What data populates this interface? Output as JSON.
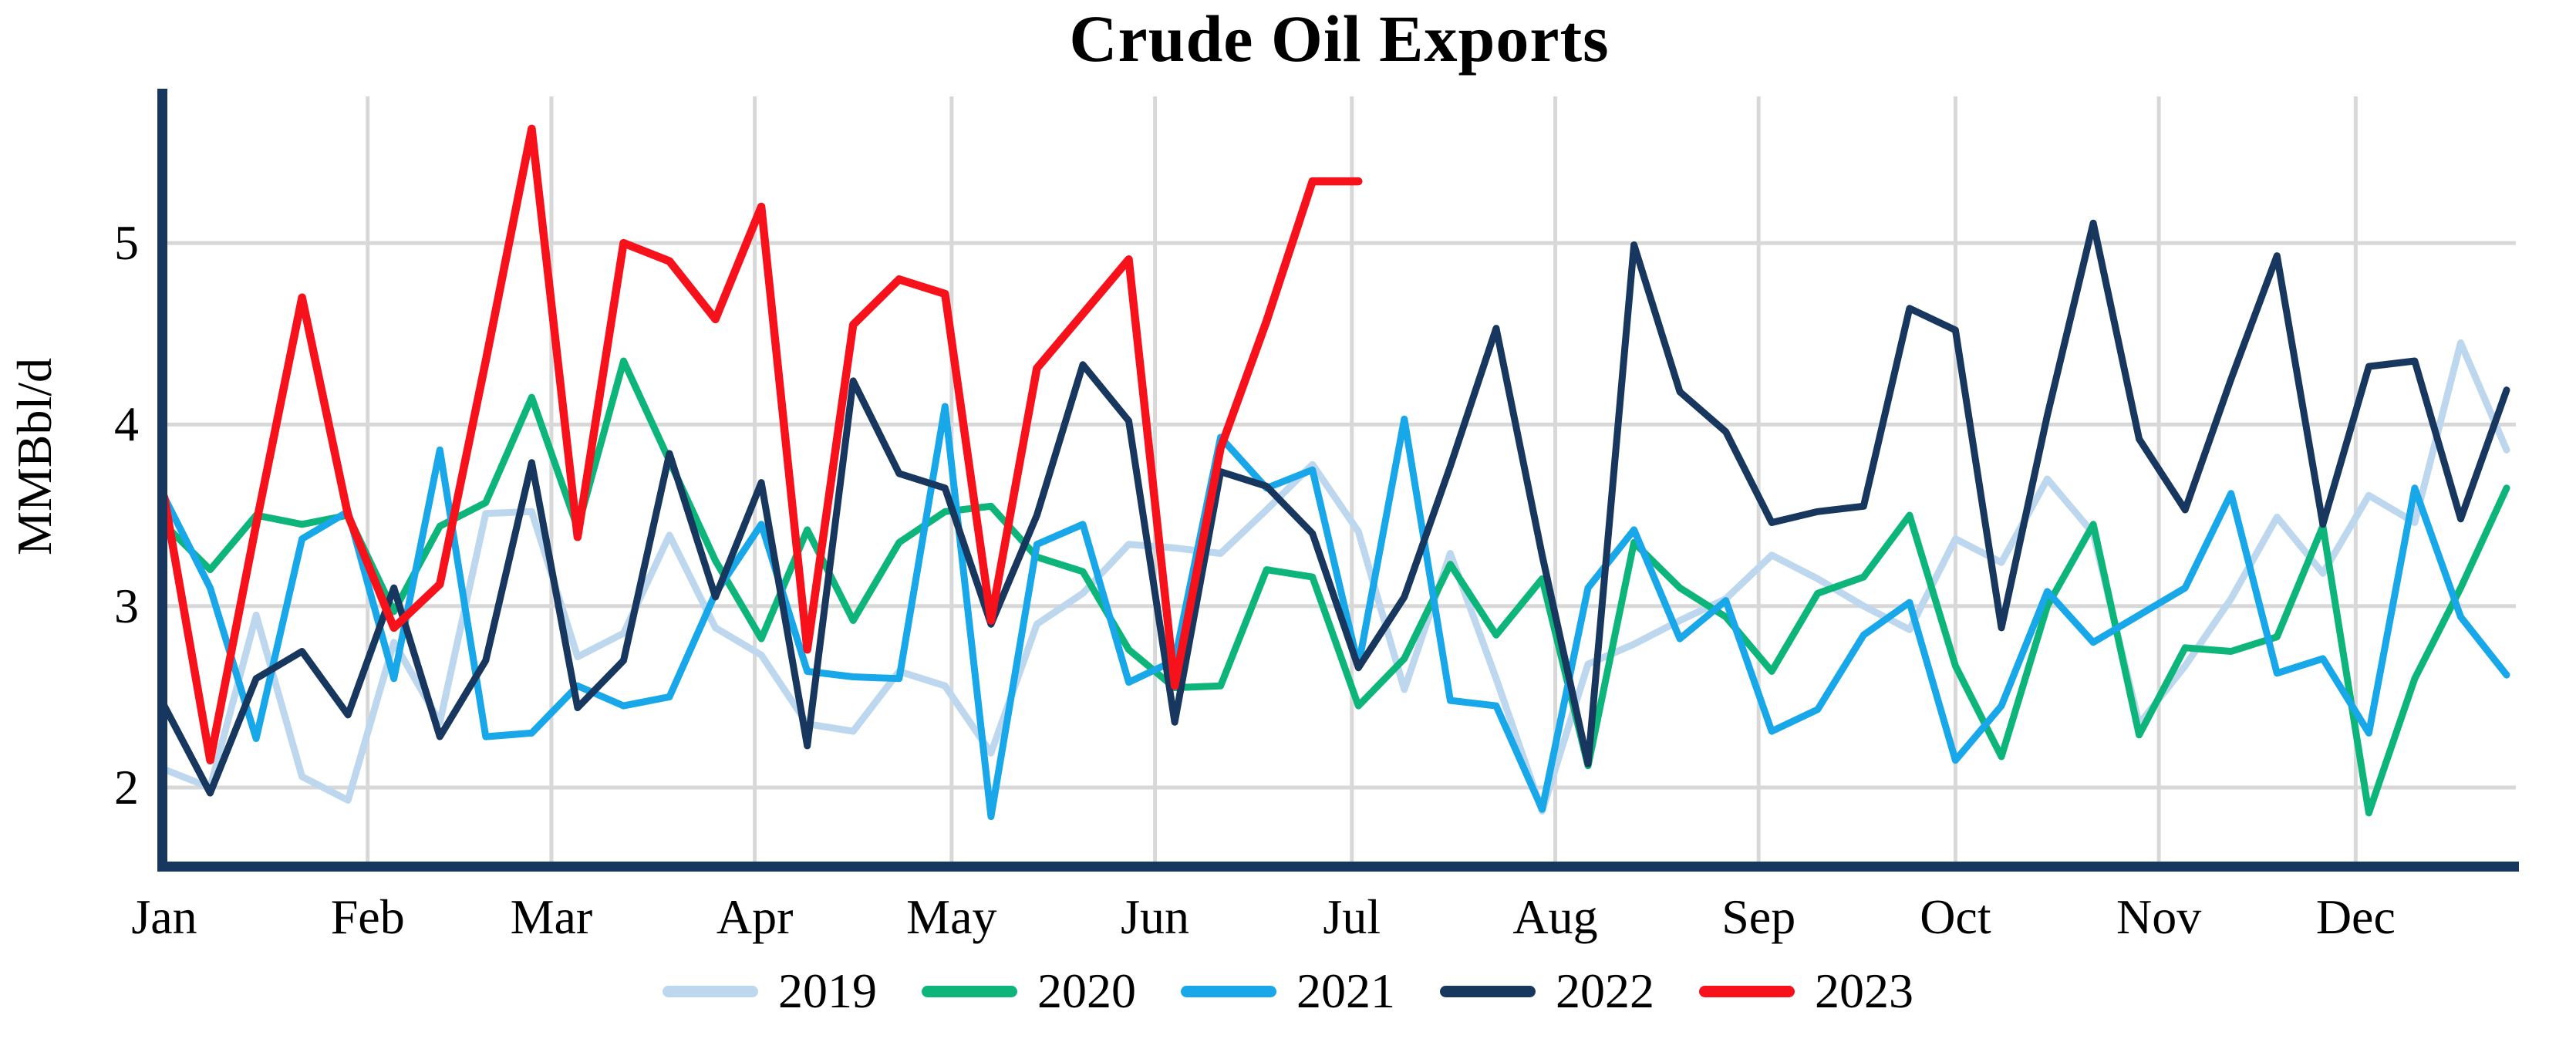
{
  "title": "Crude Oil Exports",
  "y_axis": {
    "label": "MMBbl/d",
    "ticks": [
      2,
      3,
      4,
      5
    ]
  },
  "x_axis": {
    "months": [
      "Jan",
      "Feb",
      "Mar",
      "Apr",
      "May",
      "Jun",
      "Jul",
      "Aug",
      "Sep",
      "Oct",
      "Nov",
      "Dec"
    ],
    "month_start_day_of_year": [
      0,
      31,
      59,
      90,
      120,
      151,
      181,
      212,
      243,
      273,
      304,
      334
    ]
  },
  "legend": [
    "2019",
    "2020",
    "2021",
    "2022",
    "2023"
  ],
  "colors": {
    "2019": "#BDD7EE",
    "2020": "#0EB57A",
    "2021": "#18A7E8",
    "2022": "#17375E",
    "2023": "#F6111B",
    "axis": "#17375E",
    "gridline": "#D8D8D8",
    "text": "#000000"
  },
  "chart_data": {
    "type": "line",
    "title": "Crude Oil Exports",
    "xlabel": "",
    "ylabel": "MMBbl/d",
    "x_unit": "week_of_year",
    "points_per_year": 52,
    "ylim": [
      1.57,
      5.82
    ],
    "yticks": [
      2,
      3,
      4,
      5
    ],
    "grid": true,
    "legend_position": "bottom",
    "series": [
      {
        "name": "2019",
        "values": [
          2.1,
          2.0,
          2.95,
          2.06,
          1.93,
          2.8,
          2.36,
          3.51,
          3.52,
          2.72,
          2.85,
          3.39,
          2.88,
          2.73,
          2.35,
          2.31,
          2.64,
          2.56,
          2.19,
          2.9,
          3.07,
          3.34,
          3.32,
          3.29,
          3.53,
          3.78,
          3.41,
          2.54,
          3.29,
          2.6,
          1.87,
          2.68,
          2.79,
          2.92,
          3.04,
          3.28,
          3.15,
          3.0,
          2.87,
          3.37,
          3.24,
          3.7,
          3.4,
          2.35,
          2.67,
          3.04,
          3.49,
          3.18,
          3.61,
          3.46,
          4.45,
          3.86
        ]
      },
      {
        "name": "2020",
        "values": [
          3.45,
          3.2,
          3.5,
          3.45,
          3.5,
          2.97,
          3.44,
          3.57,
          4.15,
          3.43,
          4.35,
          3.8,
          3.25,
          2.82,
          3.42,
          2.92,
          3.35,
          3.52,
          3.55,
          3.27,
          3.19,
          2.76,
          2.55,
          2.56,
          3.2,
          3.16,
          2.45,
          2.71,
          3.23,
          2.84,
          3.15,
          2.12,
          3.35,
          3.1,
          2.94,
          2.64,
          3.07,
          3.16,
          3.5,
          2.67,
          2.17,
          3.0,
          3.45,
          2.29,
          2.77,
          2.75,
          2.83,
          3.44,
          1.86,
          2.6,
          3.1,
          3.65
        ]
      },
      {
        "name": "2021",
        "values": [
          3.6,
          3.1,
          2.27,
          3.37,
          3.52,
          2.6,
          3.86,
          2.28,
          2.3,
          2.56,
          2.45,
          2.5,
          3.07,
          3.45,
          2.64,
          2.61,
          2.6,
          4.1,
          1.84,
          3.34,
          3.45,
          2.58,
          2.7,
          3.93,
          3.65,
          3.75,
          2.67,
          4.03,
          2.48,
          2.45,
          1.88,
          3.1,
          3.42,
          2.82,
          3.03,
          2.31,
          2.43,
          2.84,
          3.02,
          2.15,
          2.45,
          3.08,
          2.8,
          2.95,
          3.1,
          3.62,
          2.63,
          2.71,
          2.3,
          3.65,
          2.94,
          2.62
        ]
      },
      {
        "name": "2022",
        "values": [
          2.45,
          1.97,
          2.6,
          2.75,
          2.4,
          3.1,
          2.28,
          2.7,
          3.79,
          2.44,
          2.7,
          3.84,
          3.05,
          3.68,
          2.23,
          4.24,
          3.73,
          3.65,
          2.9,
          3.5,
          4.33,
          4.02,
          2.36,
          3.74,
          3.66,
          3.4,
          2.66,
          3.05,
          3.77,
          4.53,
          3.28,
          2.13,
          4.99,
          4.18,
          3.96,
          3.46,
          3.52,
          3.55,
          4.64,
          4.52,
          2.88,
          4.05,
          5.11,
          3.92,
          3.53,
          4.25,
          4.93,
          3.45,
          4.32,
          4.35,
          3.48,
          4.19
        ]
      },
      {
        "name": "2023",
        "values": [
          3.6,
          2.15,
          3.45,
          4.7,
          3.5,
          2.88,
          3.12,
          4.35,
          5.63,
          3.38,
          5.0,
          4.9,
          4.58,
          5.2,
          2.76,
          4.55,
          4.8,
          4.72,
          2.92,
          4.31,
          4.61,
          4.91,
          2.56,
          3.87,
          4.57,
          5.34,
          5.34
        ]
      }
    ]
  }
}
